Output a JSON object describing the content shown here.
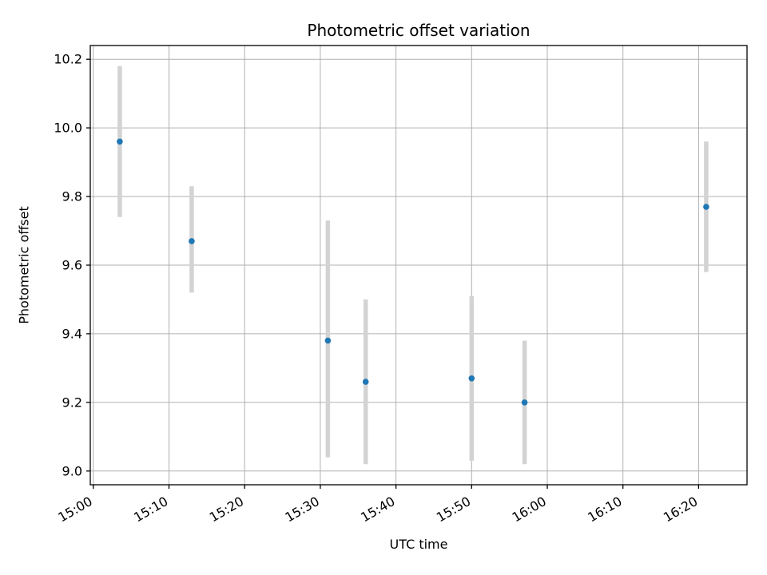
{
  "chart_data": {
    "type": "scatter",
    "title": "Photometric offset variation",
    "xlabel": "UTC time",
    "ylabel": "Photometric offset",
    "grid": true,
    "legend": "none",
    "x_tick_labels": [
      "15:00",
      "15:10",
      "15:20",
      "15:30",
      "15:40",
      "15:50",
      "16:00",
      "16:10",
      "16:20"
    ],
    "x_tick_minutes": [
      0,
      10,
      20,
      30,
      40,
      50,
      60,
      70,
      80
    ],
    "y_ticks": [
      9.0,
      9.2,
      9.4,
      9.6,
      9.8,
      10.0,
      10.2
    ],
    "y_tick_labels": [
      "9.0",
      "9.2",
      "9.4",
      "9.6",
      "9.8",
      "10.0",
      "10.2"
    ],
    "xlim_minutes": [
      -0.4,
      86.4
    ],
    "ylim": [
      8.96,
      10.24
    ],
    "marker_color": "#1f77b4",
    "errorbar_color": "#d3d3d3",
    "grid_color": "#b0b0b0",
    "spine_color": "#000000",
    "points": [
      {
        "utc": "15:04",
        "x_minutes": 3.5,
        "y": 9.96,
        "err_lo": 9.74,
        "err_hi": 10.18
      },
      {
        "utc": "15:13",
        "x_minutes": 13.0,
        "y": 9.67,
        "err_lo": 9.52,
        "err_hi": 9.83
      },
      {
        "utc": "15:31",
        "x_minutes": 31.0,
        "y": 9.38,
        "err_lo": 9.04,
        "err_hi": 9.73
      },
      {
        "utc": "15:36",
        "x_minutes": 36.0,
        "y": 9.26,
        "err_lo": 9.02,
        "err_hi": 9.5
      },
      {
        "utc": "15:50",
        "x_minutes": 50.0,
        "y": 9.27,
        "err_lo": 9.03,
        "err_hi": 9.51
      },
      {
        "utc": "15:57",
        "x_minutes": 57.0,
        "y": 9.2,
        "err_lo": 9.02,
        "err_hi": 9.38
      },
      {
        "utc": "16:21",
        "x_minutes": 81.0,
        "y": 9.77,
        "err_lo": 9.58,
        "err_hi": 9.96
      }
    ]
  }
}
